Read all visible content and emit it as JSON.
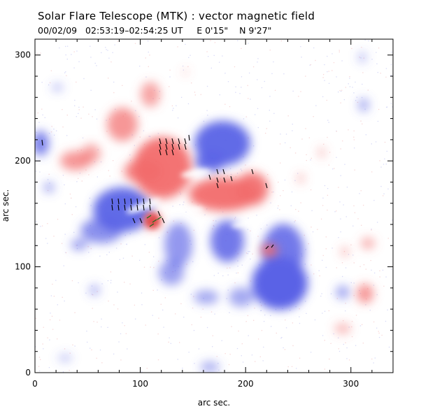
{
  "header": {
    "title": "Solar Flare Telescope (MTK) : vector magnetic field",
    "datetime": "00/02/09   02:53:19–02:54:25 UT",
    "coord_e": "E 0'15\"",
    "coord_n": "N 9'27\""
  },
  "axes": {
    "xlabel": "arc sec.",
    "ylabel": "arc sec.",
    "xlim": [
      0,
      340
    ],
    "ylim": [
      0,
      315
    ],
    "xticks": [
      "0",
      "100",
      "200",
      "300"
    ],
    "yticks": [
      "0",
      "100",
      "200",
      "300"
    ]
  },
  "colors": {
    "positive_polarity": "#f26b6b",
    "negative_polarity": "#5a62e6",
    "vector": "#000000",
    "strong_vector": "#1f6b1f"
  }
}
